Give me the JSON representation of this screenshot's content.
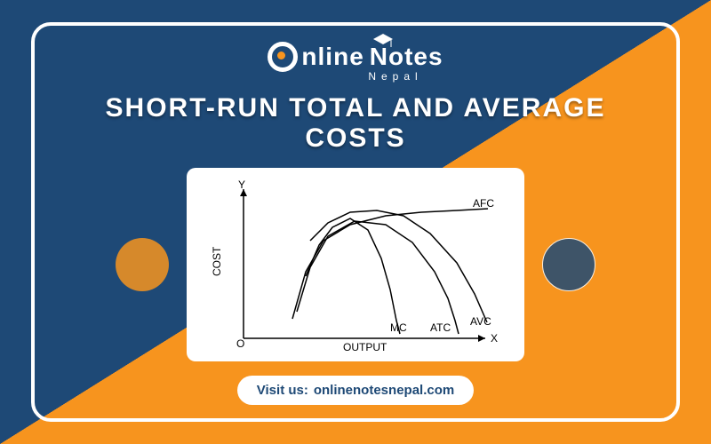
{
  "colors": {
    "navy": "#1e4976",
    "orange": "#f7941e",
    "white": "#ffffff",
    "black": "#000000"
  },
  "logo": {
    "main_pre": "nline",
    "main_post": "otes",
    "sub": "Nepal"
  },
  "title": "SHORT-RUN TOTAL AND AVERAGE COSTS",
  "visit": {
    "label": "Visit us:",
    "url": "onlinenotesnepal.com"
  },
  "chart": {
    "type": "line",
    "x_axis_label": "OUTPUT",
    "y_axis_label": "COST",
    "x_end_label": "X",
    "y_end_label": "Y",
    "origin_label": "O",
    "xlim": [
      0,
      280
    ],
    "ylim": [
      0,
      170
    ],
    "background_color": "#ffffff",
    "axis_color": "#000000",
    "curve_stroke_width": 1.5,
    "label_fontsize": 12,
    "curves": [
      {
        "name": "MC",
        "label": "MC",
        "points": [
          [
            70,
            70
          ],
          [
            85,
            105
          ],
          [
            100,
            125
          ],
          [
            120,
            135
          ],
          [
            140,
            122
          ],
          [
            155,
            90
          ],
          [
            165,
            55
          ],
          [
            172,
            20
          ],
          [
            176,
            5
          ]
        ],
        "color": "#000000"
      },
      {
        "name": "ATC",
        "label": "ATC",
        "points": [
          [
            60,
            30
          ],
          [
            75,
            80
          ],
          [
            95,
            115
          ],
          [
            125,
            132
          ],
          [
            160,
            128
          ],
          [
            190,
            108
          ],
          [
            215,
            75
          ],
          [
            230,
            45
          ],
          [
            238,
            20
          ],
          [
            242,
            5
          ]
        ],
        "color": "#000000"
      },
      {
        "name": "AVC",
        "label": "AVC",
        "points": [
          [
            75,
            110
          ],
          [
            95,
            130
          ],
          [
            120,
            142
          ],
          [
            150,
            144
          ],
          [
            180,
            138
          ],
          [
            210,
            118
          ],
          [
            240,
            85
          ],
          [
            260,
            50
          ],
          [
            274,
            18
          ]
        ],
        "color": "#000000"
      },
      {
        "name": "AFC",
        "label": "AFC",
        "points": [
          [
            55,
            22
          ],
          [
            70,
            75
          ],
          [
            90,
            110
          ],
          [
            120,
            128
          ],
          [
            160,
            138
          ],
          [
            200,
            142
          ],
          [
            240,
            144
          ],
          [
            275,
            146
          ]
        ],
        "color": "#000000"
      }
    ],
    "label_positions": {
      "MC": [
        165,
        8
      ],
      "ATC": [
        210,
        8
      ],
      "AVC": [
        255,
        15
      ],
      "AFC": [
        258,
        148
      ]
    }
  }
}
